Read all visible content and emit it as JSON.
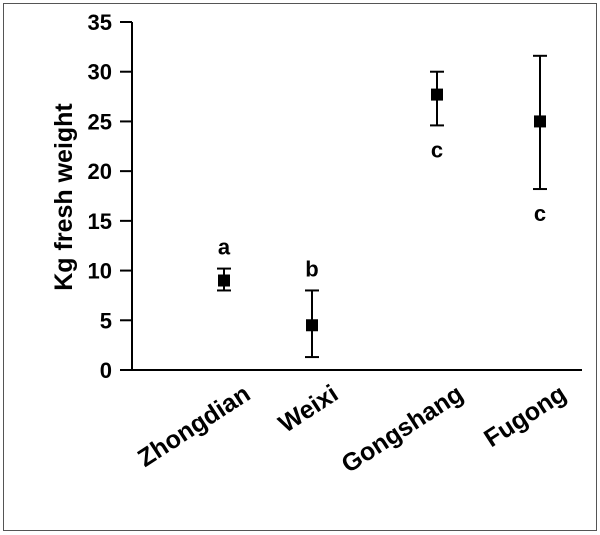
{
  "chart_data": {
    "type": "scatter",
    "title": "",
    "xlabel": "",
    "ylabel": "Kg fresh weight",
    "ylim": [
      0,
      35
    ],
    "yticks": [
      "0",
      "5",
      "10",
      "15",
      "20",
      "25",
      "30",
      "35"
    ],
    "categories": [
      "Zhongdian",
      "Weixi",
      "Gongshang",
      "Fugong"
    ],
    "points": [
      {
        "category": "Zhongdian",
        "y": 9.0,
        "err_low": 8.0,
        "err_high": 10.2,
        "letter": "a",
        "letter_position": "above"
      },
      {
        "category": "Weixi",
        "y": 4.5,
        "err_low": 1.3,
        "err_high": 8.0,
        "letter": "b",
        "letter_position": "above"
      },
      {
        "category": "Gongshang",
        "y": 27.7,
        "err_low": 24.6,
        "err_high": 30.0,
        "letter": "c",
        "letter_position": "below"
      },
      {
        "category": "Fugong",
        "y": 25.0,
        "err_low": 18.2,
        "err_high": 31.6,
        "letter": "c",
        "letter_position": "below"
      }
    ],
    "grid": false,
    "legend": "none",
    "marker": "square",
    "color": "#000000"
  }
}
